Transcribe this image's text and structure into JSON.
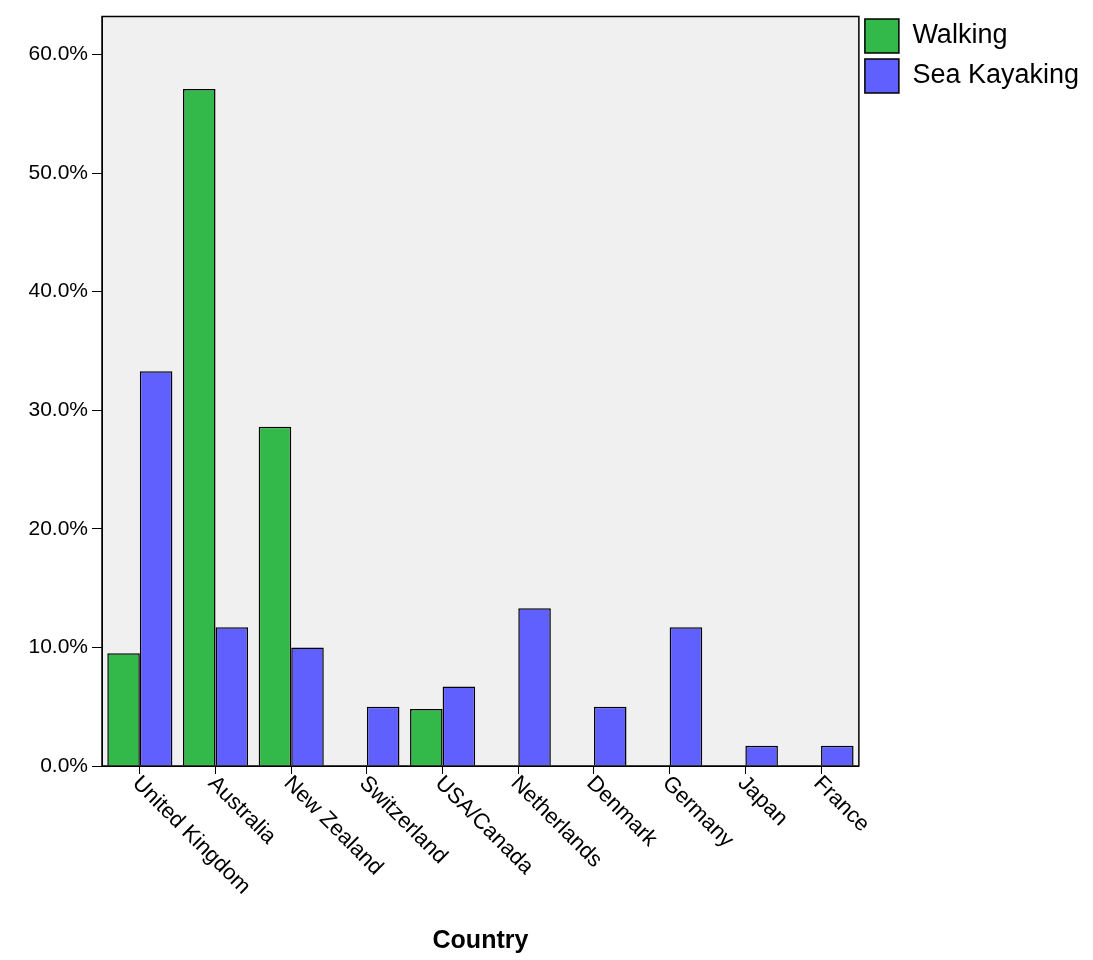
{
  "chart_data": {
    "type": "bar",
    "xlabel": "Country",
    "categories": [
      "United Kingdom",
      "Australia",
      "New Zealand",
      "Switzerland",
      "USA/Canada",
      "Netherlands",
      "Denmark",
      "Germany",
      "Japan",
      "France"
    ],
    "series": [
      {
        "name": "Walking",
        "color": "#33b84a",
        "values": [
          9.5,
          57.1,
          28.6,
          0,
          4.8,
          0,
          0,
          0,
          0,
          0
        ]
      },
      {
        "name": "Sea Kayaking",
        "color": "#6060ff",
        "values": [
          33.3,
          11.7,
          10.0,
          5.0,
          6.7,
          13.3,
          5.0,
          11.7,
          1.7,
          1.7
        ]
      }
    ],
    "ylim": [
      0,
      63.2
    ],
    "yticks": [
      {
        "value": 0,
        "label": "0.0%"
      },
      {
        "value": 10,
        "label": "10.0%"
      },
      {
        "value": 20,
        "label": "20.0%"
      },
      {
        "value": 30,
        "label": "30.0%"
      },
      {
        "value": 40,
        "label": "40.0%"
      },
      {
        "value": 50,
        "label": "50.0%"
      },
      {
        "value": 60,
        "label": "60.0%"
      }
    ],
    "grid": false,
    "legend": "top right"
  }
}
